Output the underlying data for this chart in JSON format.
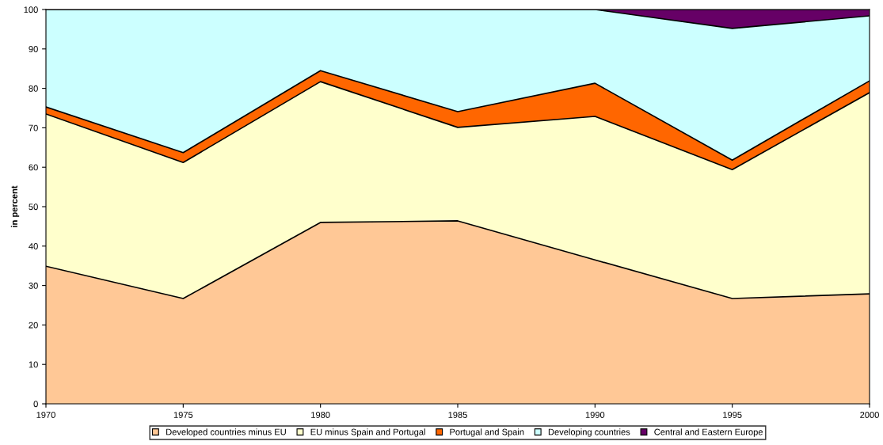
{
  "chart_data": {
    "type": "area",
    "stacked": true,
    "ylabel": "in percent",
    "x": [
      1970,
      1975,
      1980,
      1985,
      1990,
      1995,
      2000
    ],
    "xlim": [
      1970,
      2000
    ],
    "xticks": [
      1970,
      1975,
      1980,
      1985,
      1990,
      1995,
      2000
    ],
    "ylim": [
      0,
      100
    ],
    "yticks": [
      0,
      10,
      20,
      30,
      40,
      50,
      60,
      70,
      80,
      90,
      100
    ],
    "grid": false,
    "legend": "bottom",
    "series": [
      {
        "name": "Developed countries minus EU",
        "color": "#ffc896",
        "values": [
          34.9,
          26.7,
          46.0,
          46.4,
          36.5,
          26.7,
          27.9
        ]
      },
      {
        "name": "EU minus Spain and Portugal",
        "color": "#ffffcc",
        "values": [
          38.6,
          34.5,
          35.7,
          23.7,
          36.4,
          32.7,
          51.0
        ]
      },
      {
        "name": "Portugal and Spain",
        "color": "#ff6600",
        "values": [
          1.8,
          2.5,
          2.8,
          4.0,
          8.4,
          2.4,
          3.0
        ]
      },
      {
        "name": "Developing countries",
        "color": "#ccffff",
        "values": [
          24.7,
          36.3,
          15.5,
          25.9,
          18.7,
          33.4,
          16.5
        ]
      },
      {
        "name": "Central and Eastern Europe",
        "color": "#660066",
        "values": [
          0,
          0,
          0,
          0,
          0,
          4.8,
          1.6
        ]
      }
    ]
  }
}
